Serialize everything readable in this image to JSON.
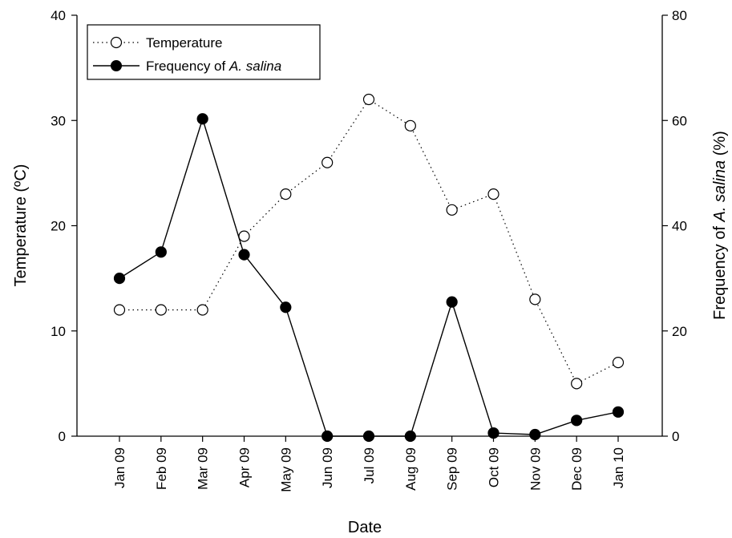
{
  "chart_data": {
    "type": "line",
    "categories": [
      "Jan 09",
      "Feb 09",
      "Mar 09",
      "Apr 09",
      "May 09",
      "Jun 09",
      "Jul 09",
      "Aug 09",
      "Sep 09",
      "Oct 09",
      "Nov 09",
      "Dec 09",
      "Jan 10"
    ],
    "xlabel": "Date",
    "ylabel_left_prefix": "Temperature (",
    "ylabel_left_unit": "ºC",
    "ylabel_left_suffix": ")",
    "ylabel_right_prefix": "Frequency of ",
    "ylabel_right_italic": "A. salina",
    "ylabel_right_suffix": " (%)",
    "ylim_left": [
      0,
      40
    ],
    "yticks_left": [
      0,
      10,
      20,
      30,
      40
    ],
    "ylim_right": [
      0,
      80
    ],
    "yticks_right": [
      0,
      20,
      40,
      60,
      80
    ],
    "grid": false,
    "legend_position": "top-left",
    "series": [
      {
        "name": "Temperature",
        "axis": "left",
        "line_style": "dotted",
        "marker": "open-circle",
        "values": [
          12,
          12,
          12,
          19,
          23,
          26,
          32,
          29.5,
          21.5,
          23,
          13,
          5,
          7
        ]
      },
      {
        "name_prefix": "Frequency of ",
        "name_italic": "A. salina",
        "axis": "right",
        "line_style": "solid",
        "marker": "filled-circle",
        "values": [
          30,
          35,
          60.3,
          34.5,
          24.5,
          0,
          0,
          0,
          25.5,
          0.6,
          0.3,
          3,
          4.6
        ]
      }
    ]
  }
}
